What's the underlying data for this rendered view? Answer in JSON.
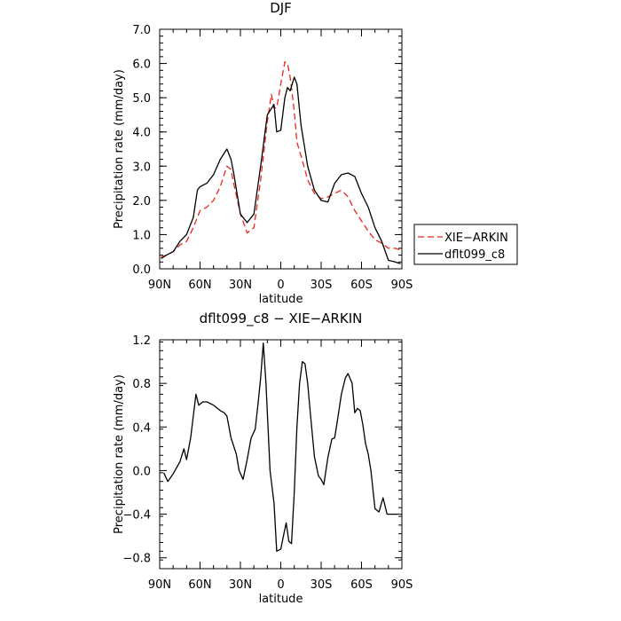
{
  "chart_data": [
    {
      "type": "line",
      "title": "DJF",
      "xlabel": "latitude",
      "ylabel": "Precipitation rate (mm/day)",
      "xlim": [
        90,
        -90
      ],
      "ylim": [
        0,
        7
      ],
      "x_ticks": [
        {
          "value": 90,
          "label": "90N"
        },
        {
          "value": 60,
          "label": "60N"
        },
        {
          "value": 30,
          "label": "30N"
        },
        {
          "value": 0,
          "label": "0"
        },
        {
          "value": -30,
          "label": "30S"
        },
        {
          "value": -60,
          "label": "60S"
        },
        {
          "value": -90,
          "label": "90S"
        }
      ],
      "y_ticks": [
        {
          "value": 0,
          "label": "0.0"
        },
        {
          "value": 1,
          "label": "1.0"
        },
        {
          "value": 2,
          "label": "2.0"
        },
        {
          "value": 3,
          "label": "3.0"
        },
        {
          "value": 4,
          "label": "4.0"
        },
        {
          "value": 5,
          "label": "5.0"
        },
        {
          "value": 6,
          "label": "6.0"
        },
        {
          "value": 7,
          "label": "7.0"
        }
      ],
      "grid": false,
      "legend_position": "right, outside plot",
      "series": [
        {
          "name": "XIE−ARKIN",
          "color": "#e8261e",
          "dash": "dashed",
          "x": [
            89,
            85,
            80,
            75,
            70,
            65,
            60,
            55,
            50,
            45,
            40,
            37,
            35,
            30,
            25,
            20,
            15,
            10,
            7,
            5,
            3,
            0,
            -3,
            -5,
            -7,
            -10,
            -12,
            -15,
            -20,
            -25,
            -30,
            -35,
            -40,
            -45,
            -50,
            -55,
            -60,
            -65,
            -70,
            -75,
            -80,
            -85,
            -89
          ],
          "y": [
            0.35,
            0.4,
            0.5,
            0.7,
            0.8,
            1.2,
            1.7,
            1.8,
            2.0,
            2.4,
            3.0,
            2.9,
            2.5,
            1.6,
            1.05,
            1.2,
            2.6,
            4.3,
            5.1,
            4.7,
            4.7,
            5.4,
            6.05,
            6.0,
            5.6,
            4.6,
            3.7,
            3.3,
            2.6,
            2.2,
            2.05,
            2.1,
            2.2,
            2.3,
            2.1,
            1.7,
            1.4,
            1.1,
            0.85,
            0.75,
            0.6,
            0.6,
            0.55
          ]
        },
        {
          "name": "dflt099_c8",
          "color": "#000000",
          "dash": "solid",
          "x": [
            89,
            85,
            80,
            75,
            70,
            65,
            62,
            60,
            55,
            50,
            45,
            40,
            37,
            35,
            30,
            25,
            20,
            15,
            10,
            5,
            3,
            0,
            -3,
            -5,
            -7,
            -10,
            -12,
            -15,
            -20,
            -25,
            -30,
            -35,
            -40,
            -45,
            -50,
            -55,
            -60,
            -65,
            -70,
            -75,
            -80,
            -85,
            -89
          ],
          "y": [
            0.3,
            0.4,
            0.5,
            0.8,
            1.0,
            1.5,
            2.3,
            2.4,
            2.5,
            2.75,
            3.2,
            3.5,
            3.2,
            2.8,
            1.6,
            1.35,
            1.6,
            3.0,
            4.5,
            4.8,
            4.0,
            4.05,
            5.0,
            5.3,
            5.2,
            5.6,
            5.4,
            4.2,
            3.0,
            2.3,
            2.0,
            1.95,
            2.5,
            2.75,
            2.8,
            2.7,
            2.2,
            1.8,
            1.2,
            0.8,
            0.25,
            0.2,
            0.15
          ]
        }
      ]
    },
    {
      "type": "line",
      "title": "dflt099_c8 − XIE−ARKIN",
      "xlabel": "latitude",
      "ylabel": "Precipitation rate (mm/day)",
      "xlim": [
        90,
        -90
      ],
      "ylim": [
        -0.9,
        1.2
      ],
      "x_ticks": [
        {
          "value": 90,
          "label": "90N"
        },
        {
          "value": 60,
          "label": "60N"
        },
        {
          "value": 30,
          "label": "30N"
        },
        {
          "value": 0,
          "label": "0"
        },
        {
          "value": -30,
          "label": "30S"
        },
        {
          "value": -60,
          "label": "60S"
        },
        {
          "value": -90,
          "label": "90S"
        }
      ],
      "y_ticks": [
        {
          "value": -0.8,
          "label": "−0.8"
        },
        {
          "value": -0.4,
          "label": "−0.4"
        },
        {
          "value": 0.0,
          "label": "0.0"
        },
        {
          "value": 0.4,
          "label": "0.4"
        },
        {
          "value": 0.8,
          "label": "0.8"
        },
        {
          "value": 1.2,
          "label": "1.2"
        }
      ],
      "grid": false,
      "series": [
        {
          "color": "#000000",
          "dash": "solid",
          "x": [
            87,
            84,
            80,
            75,
            72,
            70,
            67,
            63,
            61,
            58,
            55,
            50,
            45,
            42,
            40,
            37,
            33,
            31,
            28,
            25,
            22,
            19,
            17,
            15,
            13,
            11,
            8,
            5,
            3,
            0,
            -2,
            -4,
            -6,
            -8,
            -10,
            -12,
            -14,
            -16,
            -18,
            -20,
            -22,
            -25,
            -28,
            -30,
            -32,
            -35,
            -38,
            -40,
            -42,
            -45,
            -48,
            -50,
            -53,
            -55,
            -57,
            -59,
            -61,
            -63,
            -65,
            -67,
            -70,
            -73,
            -76,
            -79,
            -81,
            -83,
            -85,
            -87
          ],
          "y": [
            -0.02,
            -0.1,
            -0.03,
            0.08,
            0.2,
            0.1,
            0.3,
            0.7,
            0.6,
            0.63,
            0.63,
            0.6,
            0.55,
            0.53,
            0.5,
            0.3,
            0.15,
            0.0,
            -0.08,
            0.1,
            0.3,
            0.38,
            0.6,
            0.85,
            1.17,
            0.8,
            0.0,
            -0.3,
            -0.74,
            -0.72,
            -0.6,
            -0.48,
            -0.65,
            -0.67,
            -0.2,
            0.4,
            0.8,
            1.0,
            0.98,
            0.8,
            0.52,
            0.13,
            -0.05,
            -0.08,
            -0.13,
            0.12,
            0.29,
            0.3,
            0.45,
            0.7,
            0.85,
            0.89,
            0.8,
            0.53,
            0.57,
            0.55,
            0.42,
            0.25,
            0.15,
            0.0,
            -0.35,
            -0.38,
            -0.25,
            -0.4,
            -0.4,
            -0.4,
            -0.4,
            -0.4
          ]
        }
      ]
    }
  ]
}
